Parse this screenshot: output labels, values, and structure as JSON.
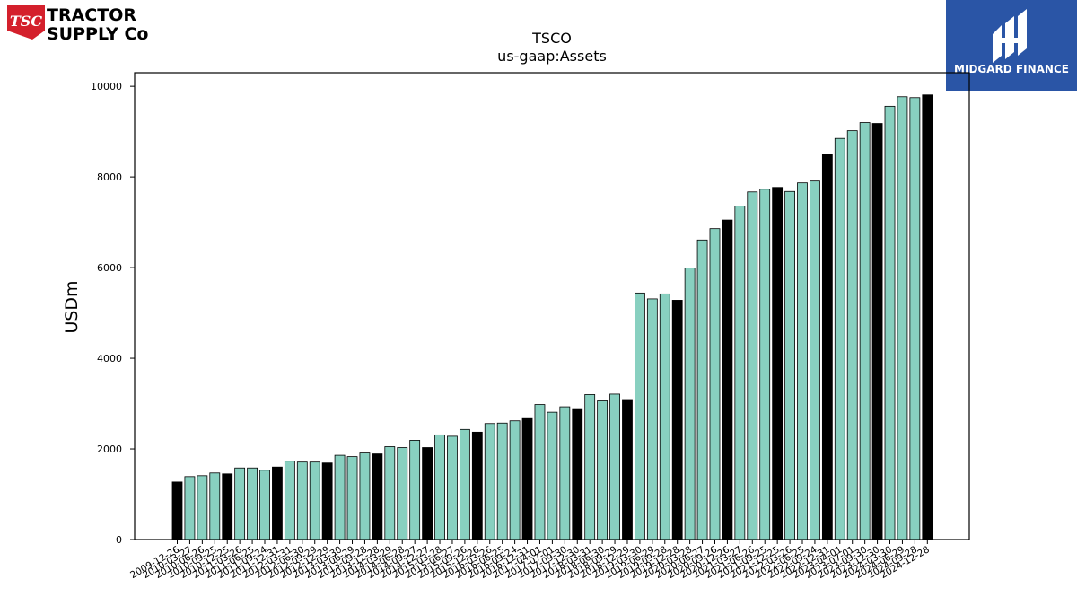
{
  "brand": {
    "left_logo_badge": "TSC",
    "left_logo_line1": "TRACTOR",
    "left_logo_line2": "SUPPLY Co",
    "right_logo_text": "MIDGARD FINANCE"
  },
  "colors": {
    "quarter_bar": "#88d0c0",
    "annual_bar": "#000000",
    "tsc_red": "#d4202c",
    "midgard_blue": "#2a55a6"
  },
  "chart_data": {
    "type": "bar",
    "title": "TSCO",
    "subtitle": "us-gaap:Assets",
    "xlabel": "",
    "ylabel": "USDm",
    "ylim": [
      0,
      10300
    ],
    "yticks": [
      0,
      2000,
      4000,
      6000,
      8000,
      10000
    ],
    "grid": false,
    "legend": "none",
    "categories": [
      "2009-12-26",
      "2010-03-27",
      "2010-06-26",
      "2010-09-25",
      "2010-12-25",
      "2011-03-26",
      "2011-06-25",
      "2011-09-24",
      "2011-12-31",
      "2012-03-31",
      "2012-06-30",
      "2012-09-29",
      "2012-12-29",
      "2013-03-30",
      "2013-06-29",
      "2013-09-28",
      "2013-12-28",
      "2014-03-29",
      "2014-06-28",
      "2014-09-27",
      "2014-12-27",
      "2015-03-28",
      "2015-06-27",
      "2015-09-26",
      "2015-12-26",
      "2016-03-26",
      "2016-06-25",
      "2016-09-24",
      "2016-12-31",
      "2017-04-01",
      "2017-07-01",
      "2017-09-30",
      "2017-12-30",
      "2018-03-31",
      "2018-06-30",
      "2018-09-29",
      "2018-12-29",
      "2019-03-30",
      "2019-06-29",
      "2019-09-28",
      "2019-12-28",
      "2020-03-28",
      "2020-06-27",
      "2020-09-26",
      "2020-12-26",
      "2021-03-27",
      "2021-06-26",
      "2021-09-25",
      "2021-12-25",
      "2022-03-26",
      "2022-06-25",
      "2022-09-24",
      "2022-12-31",
      "2023-04-01",
      "2023-07-01",
      "2023-09-30",
      "2023-12-30",
      "2024-03-30",
      "2024-06-29",
      "2024-09-28",
      "2024-12-28"
    ],
    "values": [
      1270,
      1390,
      1410,
      1470,
      1450,
      1580,
      1580,
      1530,
      1600,
      1730,
      1710,
      1710,
      1690,
      1860,
      1830,
      1910,
      1890,
      2050,
      2030,
      2190,
      2030,
      2310,
      2280,
      2430,
      2370,
      2560,
      2570,
      2620,
      2670,
      2980,
      2810,
      2930,
      2870,
      3200,
      3060,
      3210,
      3090,
      5440,
      5310,
      5420,
      5280,
      5990,
      6610,
      6860,
      7050,
      7360,
      7670,
      7730,
      7770,
      7680,
      7870,
      7910,
      8500,
      8850,
      9020,
      9200,
      9180,
      9560,
      9770,
      9750,
      9810
    ],
    "annual_flags": [
      1,
      0,
      0,
      0,
      1,
      0,
      0,
      0,
      1,
      0,
      0,
      0,
      1,
      0,
      0,
      0,
      1,
      0,
      0,
      0,
      1,
      0,
      0,
      0,
      1,
      0,
      0,
      0,
      1,
      0,
      0,
      0,
      1,
      0,
      0,
      0,
      1,
      0,
      0,
      0,
      1,
      0,
      0,
      0,
      1,
      0,
      0,
      0,
      1,
      0,
      0,
      0,
      1,
      0,
      0,
      0,
      1,
      0,
      0,
      0,
      1
    ]
  }
}
